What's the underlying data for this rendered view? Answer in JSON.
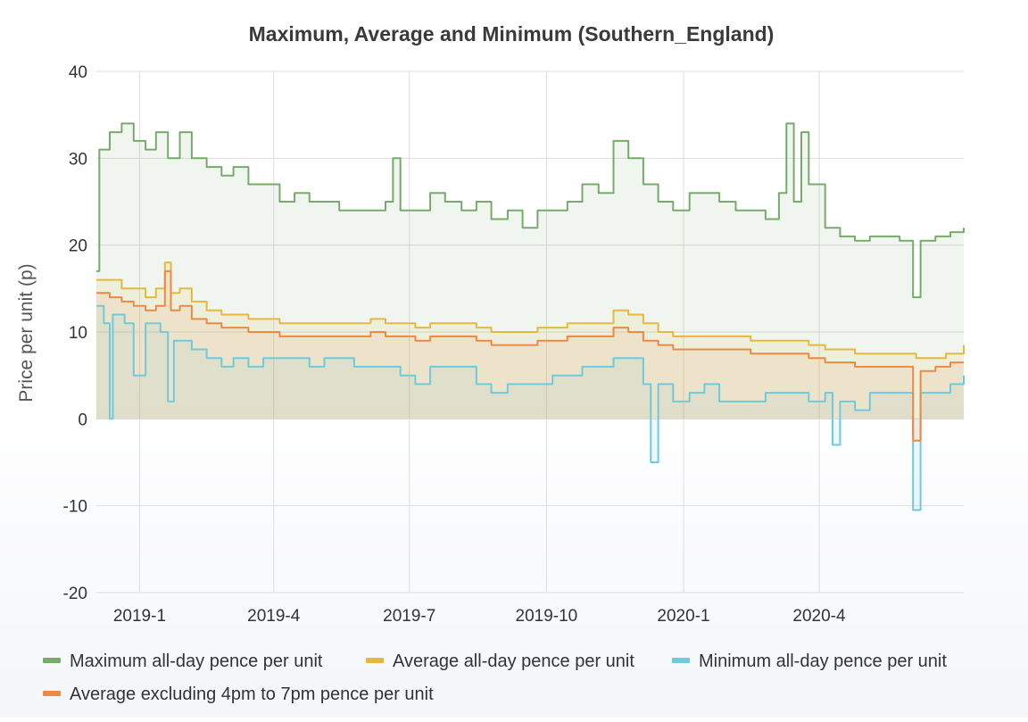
{
  "chart_data": {
    "type": "line",
    "title": "Maximum, Average and Minimum (Southern_England)",
    "ylabel": "Price per unit (p)",
    "xlabel": "",
    "ylim": [
      -20,
      40
    ],
    "yticks": [
      40,
      30,
      20,
      10,
      0,
      -10,
      -20
    ],
    "xlim": [
      "2018-12-03",
      "2020-07-07"
    ],
    "xticks": [
      {
        "date": "2019-01-01",
        "label": "2019-1"
      },
      {
        "date": "2019-04-01",
        "label": "2019-4"
      },
      {
        "date": "2019-07-01",
        "label": "2019-7"
      },
      {
        "date": "2019-10-01",
        "label": "2019-10"
      },
      {
        "date": "2020-01-01",
        "label": "2020-1"
      },
      {
        "date": "2020-04-01",
        "label": "2020-4"
      }
    ],
    "grid": true,
    "legend_position": "bottom",
    "series": [
      {
        "name": "Maximum all-day pence per unit",
        "color": "#77ab6b",
        "fill": true,
        "points": [
          [
            "2018-12-03",
            17
          ],
          [
            "2018-12-05",
            31
          ],
          [
            "2018-12-12",
            33
          ],
          [
            "2018-12-20",
            34
          ],
          [
            "2018-12-28",
            32
          ],
          [
            "2019-01-05",
            31
          ],
          [
            "2019-01-12",
            33
          ],
          [
            "2019-01-20",
            30
          ],
          [
            "2019-01-28",
            33
          ],
          [
            "2019-02-05",
            30
          ],
          [
            "2019-02-15",
            29
          ],
          [
            "2019-02-25",
            28
          ],
          [
            "2019-03-05",
            29
          ],
          [
            "2019-03-15",
            27
          ],
          [
            "2019-03-25",
            27
          ],
          [
            "2019-04-05",
            25
          ],
          [
            "2019-04-15",
            26
          ],
          [
            "2019-04-25",
            25
          ],
          [
            "2019-05-05",
            25
          ],
          [
            "2019-05-15",
            24
          ],
          [
            "2019-05-25",
            24
          ],
          [
            "2019-06-05",
            24
          ],
          [
            "2019-06-15",
            25
          ],
          [
            "2019-06-20",
            30
          ],
          [
            "2019-06-25",
            24
          ],
          [
            "2019-07-05",
            24
          ],
          [
            "2019-07-15",
            26
          ],
          [
            "2019-07-25",
            25
          ],
          [
            "2019-08-05",
            24
          ],
          [
            "2019-08-15",
            25
          ],
          [
            "2019-08-25",
            23
          ],
          [
            "2019-09-05",
            24
          ],
          [
            "2019-09-15",
            22
          ],
          [
            "2019-09-25",
            24
          ],
          [
            "2019-10-05",
            24
          ],
          [
            "2019-10-15",
            25
          ],
          [
            "2019-10-25",
            27
          ],
          [
            "2019-11-05",
            26
          ],
          [
            "2019-11-15",
            32
          ],
          [
            "2019-11-25",
            30
          ],
          [
            "2019-12-05",
            27
          ],
          [
            "2019-12-15",
            25
          ],
          [
            "2019-12-25",
            24
          ],
          [
            "2020-01-05",
            26
          ],
          [
            "2020-01-15",
            26
          ],
          [
            "2020-01-25",
            25
          ],
          [
            "2020-02-05",
            24
          ],
          [
            "2020-02-15",
            24
          ],
          [
            "2020-02-25",
            23
          ],
          [
            "2020-03-05",
            26
          ],
          [
            "2020-03-10",
            34
          ],
          [
            "2020-03-15",
            25
          ],
          [
            "2020-03-20",
            33
          ],
          [
            "2020-03-25",
            27
          ],
          [
            "2020-04-05",
            22
          ],
          [
            "2020-04-15",
            21
          ],
          [
            "2020-04-25",
            20.5
          ],
          [
            "2020-05-05",
            21
          ],
          [
            "2020-05-15",
            21
          ],
          [
            "2020-05-25",
            20.5
          ],
          [
            "2020-06-03",
            14
          ],
          [
            "2020-06-08",
            20.5
          ],
          [
            "2020-06-18",
            21
          ],
          [
            "2020-06-28",
            21.5
          ],
          [
            "2020-07-07",
            22
          ]
        ]
      },
      {
        "name": "Average all-day pence per unit",
        "color": "#e5b83f",
        "fill": true,
        "points": [
          [
            "2018-12-03",
            16
          ],
          [
            "2018-12-12",
            16
          ],
          [
            "2018-12-20",
            15
          ],
          [
            "2018-12-28",
            15
          ],
          [
            "2019-01-05",
            14
          ],
          [
            "2019-01-12",
            15
          ],
          [
            "2019-01-18",
            18
          ],
          [
            "2019-01-22",
            14.5
          ],
          [
            "2019-01-28",
            15
          ],
          [
            "2019-02-05",
            13.5
          ],
          [
            "2019-02-15",
            12.5
          ],
          [
            "2019-02-25",
            12
          ],
          [
            "2019-03-05",
            12
          ],
          [
            "2019-03-15",
            11.5
          ],
          [
            "2019-03-25",
            11.5
          ],
          [
            "2019-04-05",
            11
          ],
          [
            "2019-04-15",
            11
          ],
          [
            "2019-04-25",
            11
          ],
          [
            "2019-05-05",
            11
          ],
          [
            "2019-05-15",
            11
          ],
          [
            "2019-05-25",
            11
          ],
          [
            "2019-06-05",
            11.5
          ],
          [
            "2019-06-15",
            11
          ],
          [
            "2019-06-25",
            11
          ],
          [
            "2019-07-05",
            10.5
          ],
          [
            "2019-07-15",
            11
          ],
          [
            "2019-07-25",
            11
          ],
          [
            "2019-08-05",
            11
          ],
          [
            "2019-08-15",
            10.5
          ],
          [
            "2019-08-25",
            10
          ],
          [
            "2019-09-05",
            10
          ],
          [
            "2019-09-15",
            10
          ],
          [
            "2019-09-25",
            10.5
          ],
          [
            "2019-10-05",
            10.5
          ],
          [
            "2019-10-15",
            11
          ],
          [
            "2019-10-25",
            11
          ],
          [
            "2019-11-05",
            11
          ],
          [
            "2019-11-15",
            12.5
          ],
          [
            "2019-11-25",
            12
          ],
          [
            "2019-12-05",
            11
          ],
          [
            "2019-12-15",
            10
          ],
          [
            "2019-12-25",
            9.5
          ],
          [
            "2020-01-05",
            9.5
          ],
          [
            "2020-01-15",
            9.5
          ],
          [
            "2020-01-25",
            9.5
          ],
          [
            "2020-02-05",
            9.5
          ],
          [
            "2020-02-15",
            9
          ],
          [
            "2020-02-25",
            9
          ],
          [
            "2020-03-05",
            9
          ],
          [
            "2020-03-15",
            9
          ],
          [
            "2020-03-25",
            8.5
          ],
          [
            "2020-04-05",
            8
          ],
          [
            "2020-04-15",
            8
          ],
          [
            "2020-04-25",
            7.5
          ],
          [
            "2020-05-05",
            7.5
          ],
          [
            "2020-05-15",
            7.5
          ],
          [
            "2020-05-25",
            7.5
          ],
          [
            "2020-06-05",
            7
          ],
          [
            "2020-06-15",
            7
          ],
          [
            "2020-06-25",
            7.5
          ],
          [
            "2020-07-07",
            8.5
          ]
        ]
      },
      {
        "name": "Minimum all-day pence per unit",
        "color": "#6fcbdb",
        "fill": true,
        "points": [
          [
            "2018-12-03",
            13
          ],
          [
            "2018-12-08",
            11
          ],
          [
            "2018-12-12",
            0
          ],
          [
            "2018-12-14",
            12
          ],
          [
            "2018-12-22",
            11
          ],
          [
            "2018-12-28",
            5
          ],
          [
            "2019-01-05",
            11
          ],
          [
            "2019-01-15",
            10
          ],
          [
            "2019-01-20",
            2
          ],
          [
            "2019-01-24",
            9
          ],
          [
            "2019-02-05",
            8
          ],
          [
            "2019-02-15",
            7
          ],
          [
            "2019-02-25",
            6
          ],
          [
            "2019-03-05",
            7
          ],
          [
            "2019-03-15",
            6
          ],
          [
            "2019-03-25",
            7
          ],
          [
            "2019-04-05",
            7
          ],
          [
            "2019-04-15",
            7
          ],
          [
            "2019-04-25",
            6
          ],
          [
            "2019-05-05",
            7
          ],
          [
            "2019-05-15",
            7
          ],
          [
            "2019-05-25",
            6
          ],
          [
            "2019-06-05",
            6
          ],
          [
            "2019-06-15",
            6
          ],
          [
            "2019-06-25",
            5
          ],
          [
            "2019-07-05",
            4
          ],
          [
            "2019-07-15",
            6
          ],
          [
            "2019-07-25",
            6
          ],
          [
            "2019-08-05",
            6
          ],
          [
            "2019-08-15",
            4
          ],
          [
            "2019-08-25",
            3
          ],
          [
            "2019-09-05",
            4
          ],
          [
            "2019-09-15",
            4
          ],
          [
            "2019-09-25",
            4
          ],
          [
            "2019-10-05",
            5
          ],
          [
            "2019-10-15",
            5
          ],
          [
            "2019-10-25",
            6
          ],
          [
            "2019-11-05",
            6
          ],
          [
            "2019-11-15",
            7
          ],
          [
            "2019-11-25",
            7
          ],
          [
            "2019-12-05",
            4
          ],
          [
            "2019-12-10",
            -5
          ],
          [
            "2019-12-15",
            4
          ],
          [
            "2019-12-25",
            2
          ],
          [
            "2020-01-05",
            3
          ],
          [
            "2020-01-15",
            4
          ],
          [
            "2020-01-25",
            2
          ],
          [
            "2020-02-05",
            2
          ],
          [
            "2020-02-15",
            2
          ],
          [
            "2020-02-25",
            3
          ],
          [
            "2020-03-05",
            3
          ],
          [
            "2020-03-15",
            3
          ],
          [
            "2020-03-25",
            2
          ],
          [
            "2020-04-05",
            3
          ],
          [
            "2020-04-10",
            -3
          ],
          [
            "2020-04-15",
            2
          ],
          [
            "2020-04-25",
            1
          ],
          [
            "2020-05-05",
            3
          ],
          [
            "2020-05-15",
            3
          ],
          [
            "2020-05-25",
            3
          ],
          [
            "2020-06-03",
            -10.5
          ],
          [
            "2020-06-08",
            3
          ],
          [
            "2020-06-18",
            3
          ],
          [
            "2020-06-28",
            4
          ],
          [
            "2020-07-07",
            5
          ]
        ]
      },
      {
        "name": "Average excluding 4pm to 7pm pence per unit",
        "color": "#ec8a45",
        "fill": true,
        "points": [
          [
            "2018-12-03",
            14.5
          ],
          [
            "2018-12-12",
            14
          ],
          [
            "2018-12-20",
            13.5
          ],
          [
            "2018-12-28",
            13
          ],
          [
            "2019-01-05",
            12.5
          ],
          [
            "2019-01-12",
            13
          ],
          [
            "2019-01-18",
            17
          ],
          [
            "2019-01-22",
            12.5
          ],
          [
            "2019-01-28",
            13
          ],
          [
            "2019-02-05",
            11.5
          ],
          [
            "2019-02-15",
            11
          ],
          [
            "2019-02-25",
            10.5
          ],
          [
            "2019-03-05",
            10.5
          ],
          [
            "2019-03-15",
            10
          ],
          [
            "2019-03-25",
            10
          ],
          [
            "2019-04-05",
            9.5
          ],
          [
            "2019-04-15",
            9.5
          ],
          [
            "2019-04-25",
            9.5
          ],
          [
            "2019-05-05",
            9.5
          ],
          [
            "2019-05-15",
            9.5
          ],
          [
            "2019-05-25",
            9.5
          ],
          [
            "2019-06-05",
            10
          ],
          [
            "2019-06-15",
            9.5
          ],
          [
            "2019-06-25",
            9.5
          ],
          [
            "2019-07-05",
            9
          ],
          [
            "2019-07-15",
            9.5
          ],
          [
            "2019-07-25",
            9.5
          ],
          [
            "2019-08-05",
            9.5
          ],
          [
            "2019-08-15",
            9
          ],
          [
            "2019-08-25",
            8.5
          ],
          [
            "2019-09-05",
            8.5
          ],
          [
            "2019-09-15",
            8.5
          ],
          [
            "2019-09-25",
            9
          ],
          [
            "2019-10-05",
            9
          ],
          [
            "2019-10-15",
            9.5
          ],
          [
            "2019-10-25",
            9.5
          ],
          [
            "2019-11-05",
            9.5
          ],
          [
            "2019-11-15",
            10.5
          ],
          [
            "2019-11-25",
            10
          ],
          [
            "2019-12-05",
            9
          ],
          [
            "2019-12-15",
            8.5
          ],
          [
            "2019-12-25",
            8
          ],
          [
            "2020-01-05",
            8
          ],
          [
            "2020-01-15",
            8
          ],
          [
            "2020-01-25",
            8
          ],
          [
            "2020-02-05",
            8
          ],
          [
            "2020-02-15",
            7.5
          ],
          [
            "2020-02-25",
            7.5
          ],
          [
            "2020-03-05",
            7.5
          ],
          [
            "2020-03-15",
            7.5
          ],
          [
            "2020-03-25",
            7
          ],
          [
            "2020-04-05",
            6.5
          ],
          [
            "2020-04-15",
            6.5
          ],
          [
            "2020-04-25",
            6
          ],
          [
            "2020-05-05",
            6
          ],
          [
            "2020-05-15",
            6
          ],
          [
            "2020-05-25",
            6
          ],
          [
            "2020-06-03",
            -2.5
          ],
          [
            "2020-06-08",
            5.5
          ],
          [
            "2020-06-18",
            6
          ],
          [
            "2020-06-28",
            6.5
          ],
          [
            "2020-07-07",
            6.5
          ]
        ]
      }
    ]
  }
}
